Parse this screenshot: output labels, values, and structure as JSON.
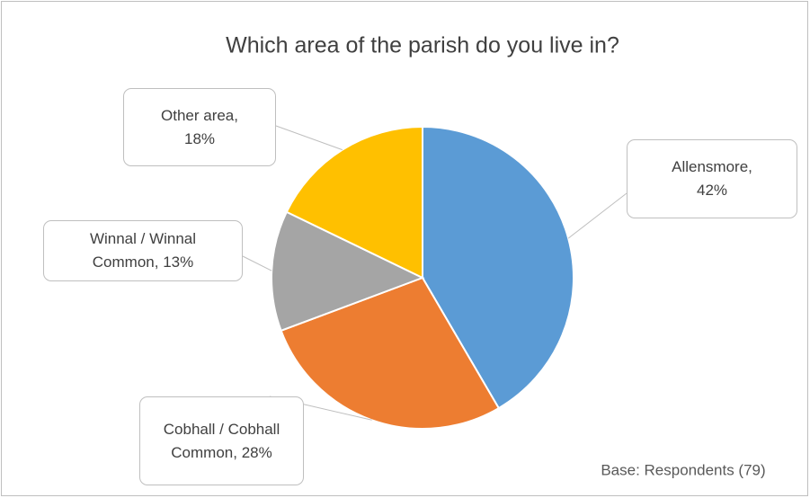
{
  "chart_data": {
    "type": "pie",
    "title": "Which area of the parish do you live in?",
    "categories": [
      "Allensmore,",
      "Cobhall / Cobhall Common,",
      "Winnal / Winnal Common,",
      "Other area,"
    ],
    "values": [
      42,
      28,
      13,
      18
    ],
    "value_labels": [
      "42%",
      "28%",
      "13%",
      "18%"
    ],
    "colors": [
      "#5b9bd5",
      "#ed7d31",
      "#a5a5a5",
      "#ffc000"
    ],
    "annotation": "Base: Respondents (79)"
  }
}
